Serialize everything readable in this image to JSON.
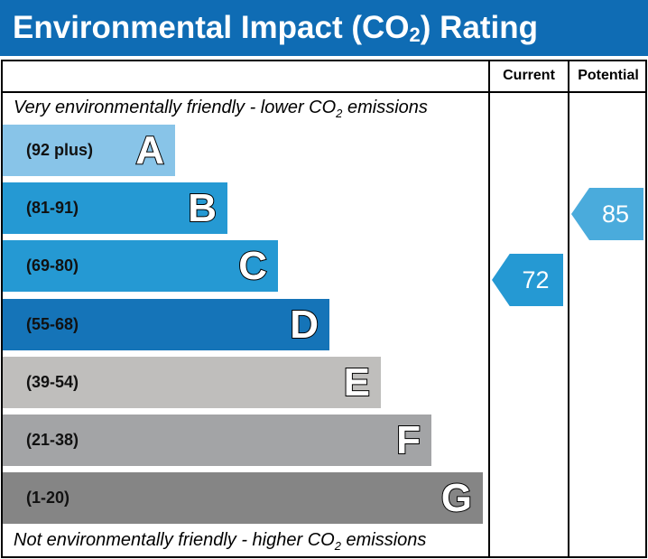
{
  "title": {
    "main": "Environmental Impact (CO",
    "sub": "2",
    "end": ") Rating"
  },
  "columns": {
    "current": "Current",
    "potential": "Potential"
  },
  "top_note": {
    "a": "Very environmentally friendly - lower CO",
    "sub": "2",
    "b": " emissions"
  },
  "bottom_note": {
    "a": "Not environmentally friendly - higher CO",
    "sub": "2",
    "b": " emissions"
  },
  "chart_data": {
    "type": "bar",
    "bands": [
      {
        "letter": "A",
        "range": "(92 plus)",
        "color": "#88c4e8"
      },
      {
        "letter": "B",
        "range": "(81-91)",
        "color": "#2599d3"
      },
      {
        "letter": "C",
        "range": "(69-80)",
        "color": "#2599d3"
      },
      {
        "letter": "D",
        "range": "(55-68)",
        "color": "#1574b8"
      },
      {
        "letter": "E",
        "range": "(39-54)",
        "color": "#bfbebc"
      },
      {
        "letter": "F",
        "range": "(21-38)",
        "color": "#a3a4a6"
      },
      {
        "letter": "G",
        "range": "(1-20)",
        "color": "#858585"
      }
    ],
    "current": {
      "value": "72",
      "band": "C",
      "color": "#2599d3"
    },
    "potential": {
      "value": "85",
      "band": "B",
      "color": "#4aabdc"
    }
  }
}
